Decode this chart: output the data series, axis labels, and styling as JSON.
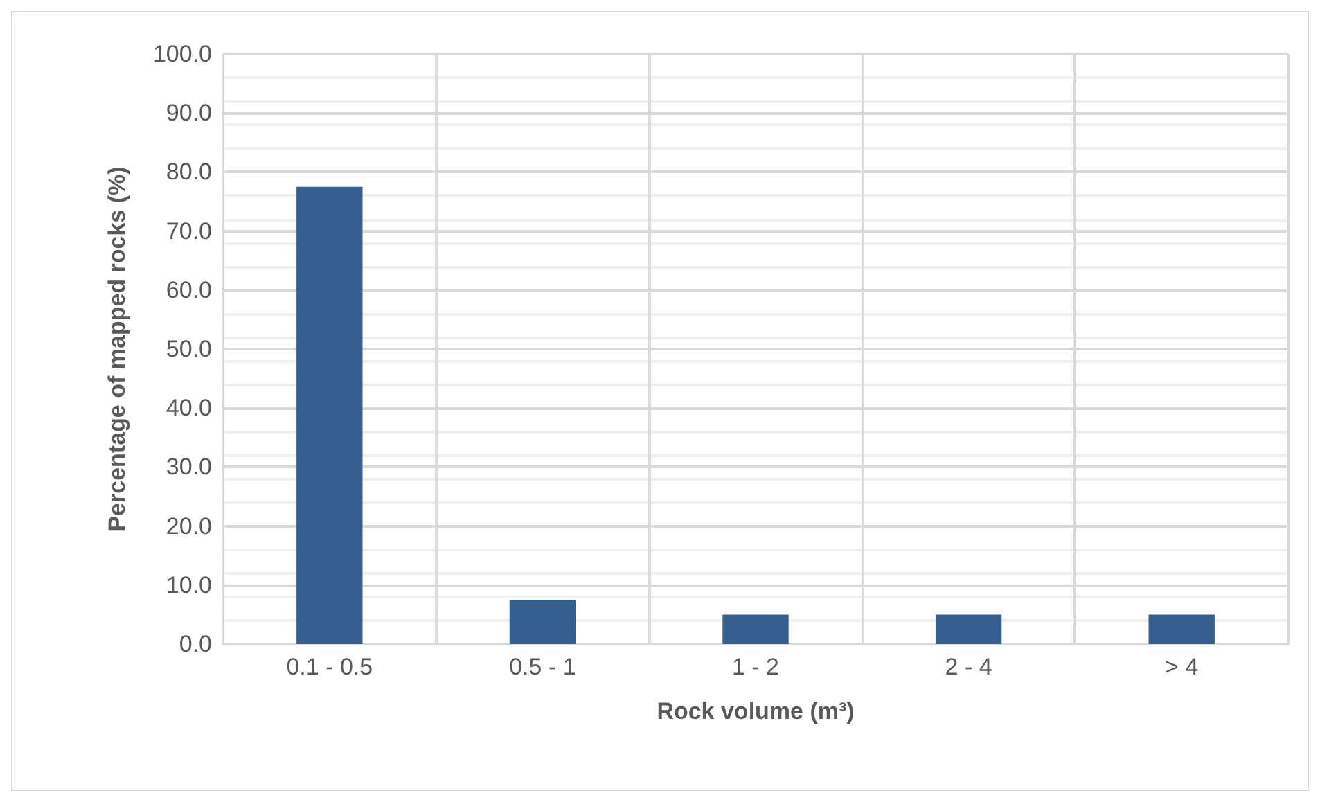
{
  "chart_data": {
    "type": "bar",
    "xlabel": "Rock volume (m³)",
    "ylabel": "Percentage of mapped rocks (%)",
    "categories": [
      "0.1 - 0.5",
      "0.5 - 1",
      "1 - 2",
      "2 - 4",
      "> 4"
    ],
    "values": [
      77.5,
      7.5,
      5.0,
      5.0,
      5.0
    ],
    "color": "#355f8f",
    "ylim": [
      0,
      100
    ],
    "yticks": [
      {
        "value": 0,
        "label": "0.0"
      },
      {
        "value": 10,
        "label": "10.0"
      },
      {
        "value": 20,
        "label": "20.0"
      },
      {
        "value": 30,
        "label": "30.0"
      },
      {
        "value": 40,
        "label": "40.0"
      },
      {
        "value": 50,
        "label": "50.0"
      },
      {
        "value": 60,
        "label": "60.0"
      },
      {
        "value": 70,
        "label": "70.0"
      },
      {
        "value": 80,
        "label": "80.0"
      },
      {
        "value": 90,
        "label": "90.0"
      },
      {
        "value": 100,
        "label": "100.0"
      }
    ],
    "grid": true
  }
}
